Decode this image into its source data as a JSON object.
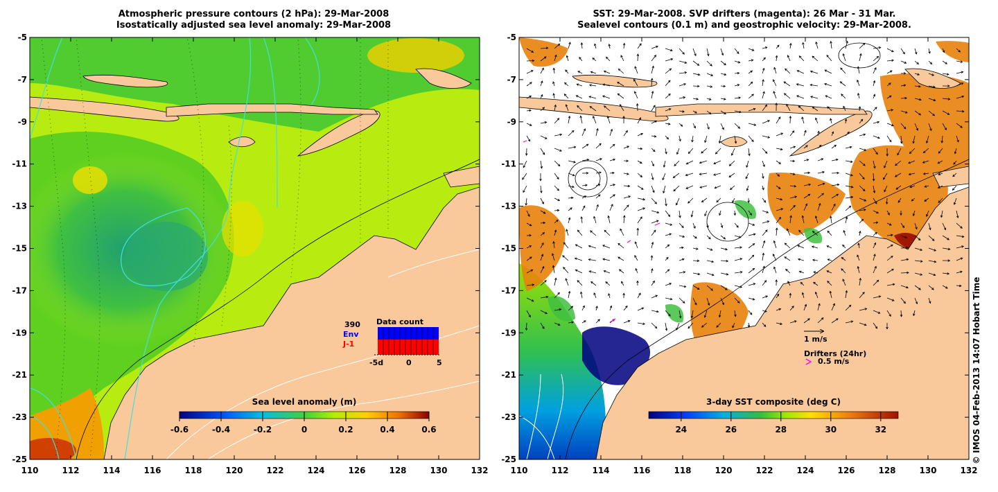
{
  "left_panel": {
    "title_line1": "Atmospheric pressure contours (2 hPa): 29-Mar-2008",
    "title_line2": "Isostatically adjusted sea level anomaly: 29-Mar-2008",
    "colorbar": {
      "title": "Sea level anomaly (m)",
      "ticks": [
        "-0.6",
        "-0.4",
        "-0.2",
        "0",
        "0.2",
        "0.4",
        "0.6"
      ],
      "range": [
        -0.6,
        0.6
      ]
    },
    "data_count": {
      "title": "Data count",
      "total": "390",
      "series": [
        {
          "name": "Env",
          "color": "#0000ff"
        },
        {
          "name": "J-1",
          "color": "#ff0000"
        }
      ],
      "x_ticks": [
        "-5d",
        "0",
        "5"
      ]
    }
  },
  "right_panel": {
    "title_line1": "SST: 29-Mar-2008. SVP drifters (magenta): 26 Mar - 31 Mar.",
    "title_line2": "Sealevel contours (0.1 m) and geostrophic velocity: 29-Mar-2008.",
    "colorbar": {
      "title": "3-day SST composite (deg C)",
      "ticks": [
        "24",
        "26",
        "28",
        "30",
        "32"
      ],
      "range": [
        22.7,
        32.7
      ]
    },
    "velocity_scale_label": "1 m/s",
    "drifters_label": "Drifters (24hr)",
    "drifter_speed_label": "0.5 m/s"
  },
  "axes": {
    "lon_ticks": [
      "110",
      "112",
      "114",
      "116",
      "118",
      "120",
      "122",
      "124",
      "126",
      "128",
      "130",
      "132"
    ],
    "lat_ticks": [
      "-5",
      "-7",
      "-9",
      "-11",
      "-13",
      "-15",
      "-17",
      "-19",
      "-21",
      "-23",
      "-25"
    ],
    "lon_range": [
      110,
      132
    ],
    "lat_range": [
      -25,
      -5
    ]
  },
  "credit": "© IMOS 04-Feb-2013 14:07 Hobart Time",
  "colors": {
    "land": "#f9c99b",
    "ocean_high": "#c8f000",
    "ocean_mid": "#50d010",
    "ocean_low": "#30b060",
    "sst_warm": "#e07a10",
    "sst_cool": "#000080",
    "drifter": "#ff00ff",
    "pressure_contour": "#40e0e0"
  }
}
